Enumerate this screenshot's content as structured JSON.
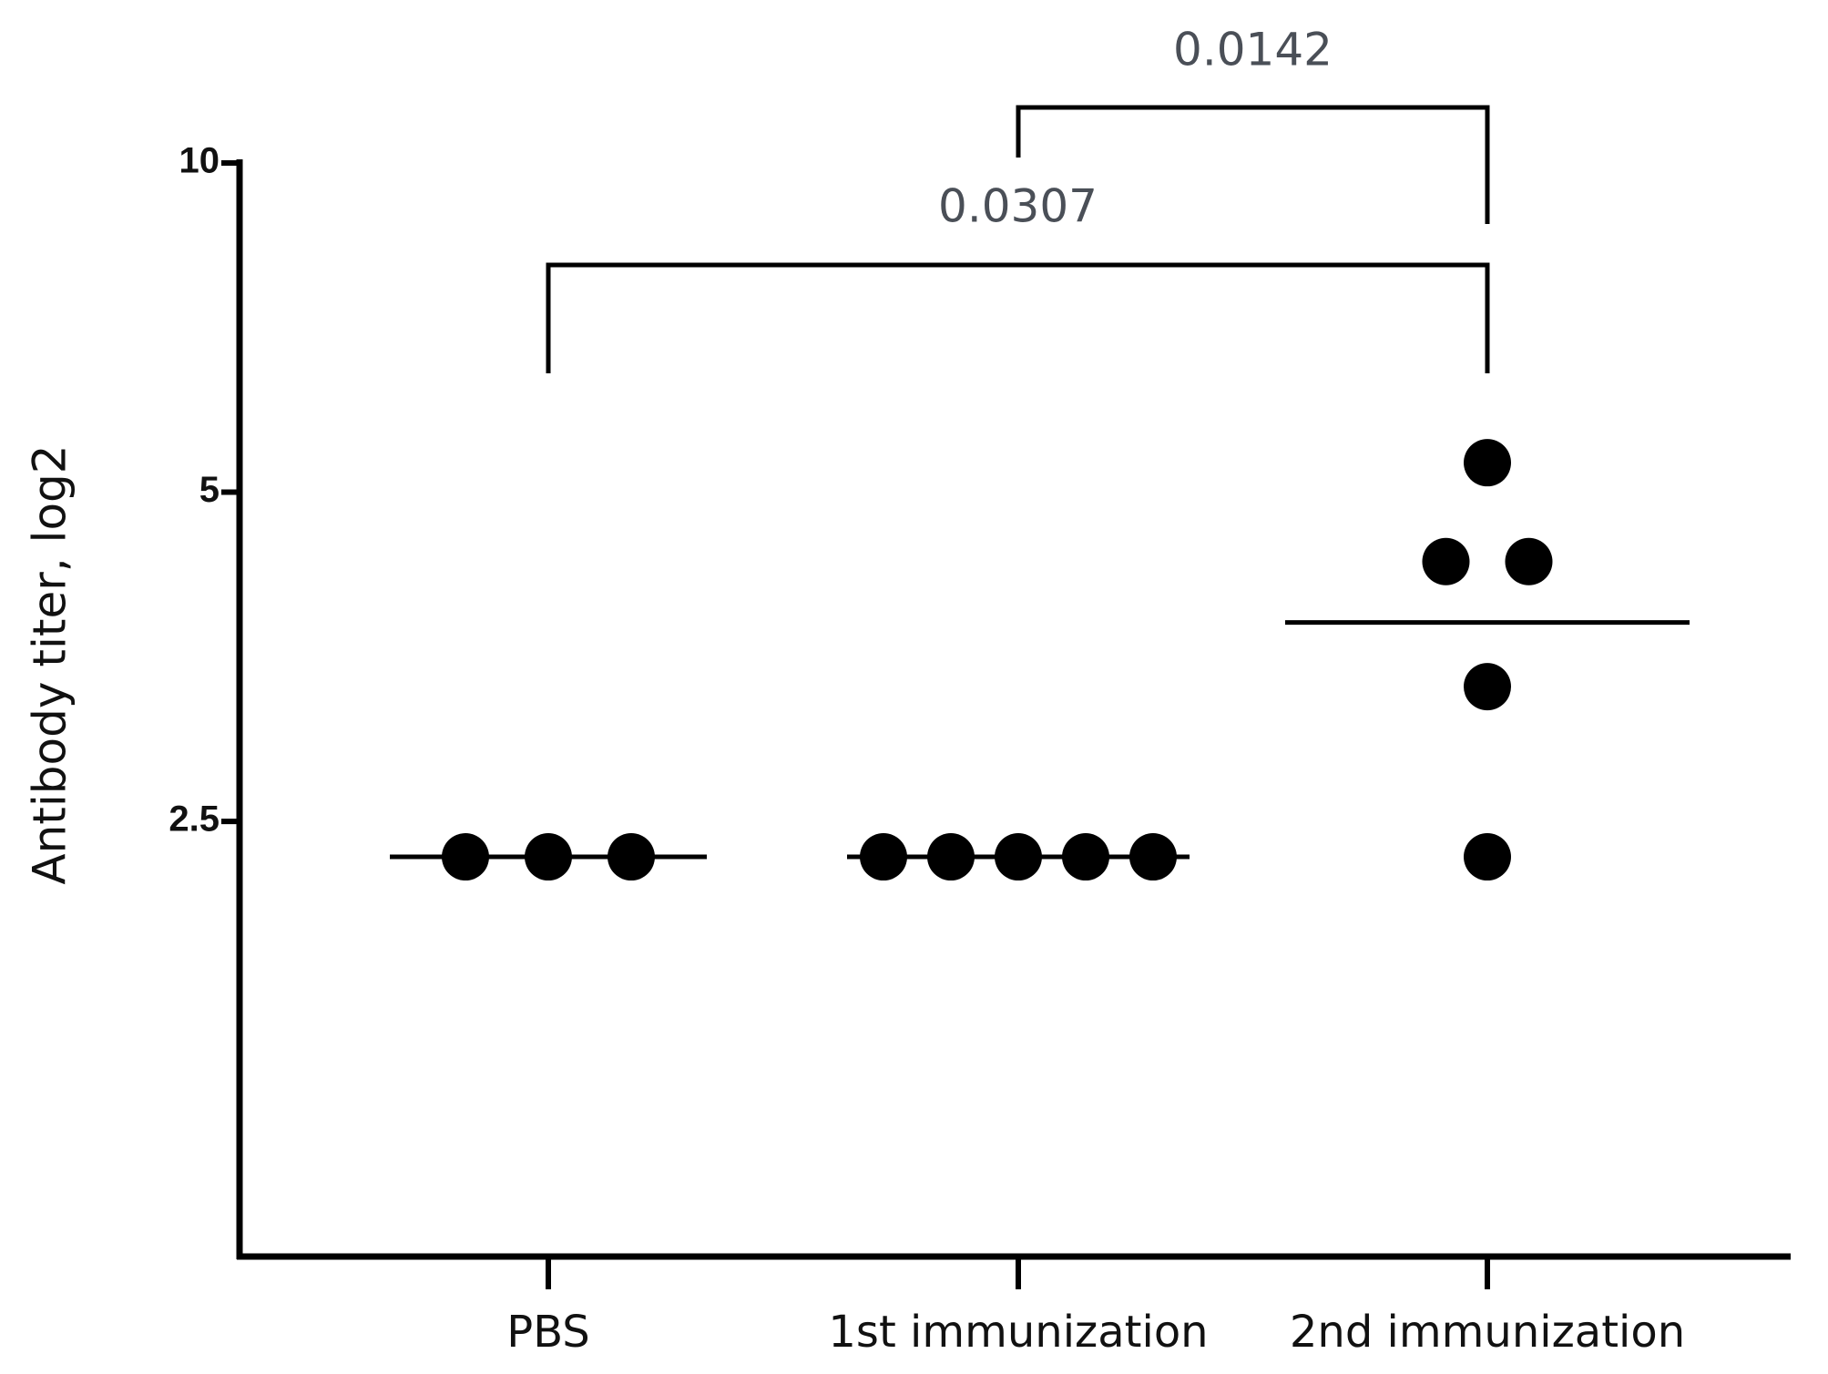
{
  "chart_data": {
    "type": "dot",
    "y_label": "Antibody titer, log2",
    "yscale": "log",
    "ylim": [
      1,
      10
    ],
    "yticks": [
      2.5,
      5,
      10
    ],
    "categories": [
      "PBS",
      "1st immunization",
      "2nd immunization"
    ],
    "values": [
      [
        2.32,
        2.32,
        2.32
      ],
      [
        2.32,
        2.32,
        2.32,
        2.32,
        2.32
      ],
      [
        5.32,
        4.32,
        4.32,
        3.32,
        2.32
      ]
    ],
    "center_lines": [
      2.32,
      2.32,
      3.8
    ],
    "color": "#000000",
    "comparisons": [
      {
        "from": 0,
        "to": 2,
        "label": "0.0307"
      },
      {
        "from": 1,
        "to": 2,
        "label": "0.0142"
      }
    ]
  }
}
